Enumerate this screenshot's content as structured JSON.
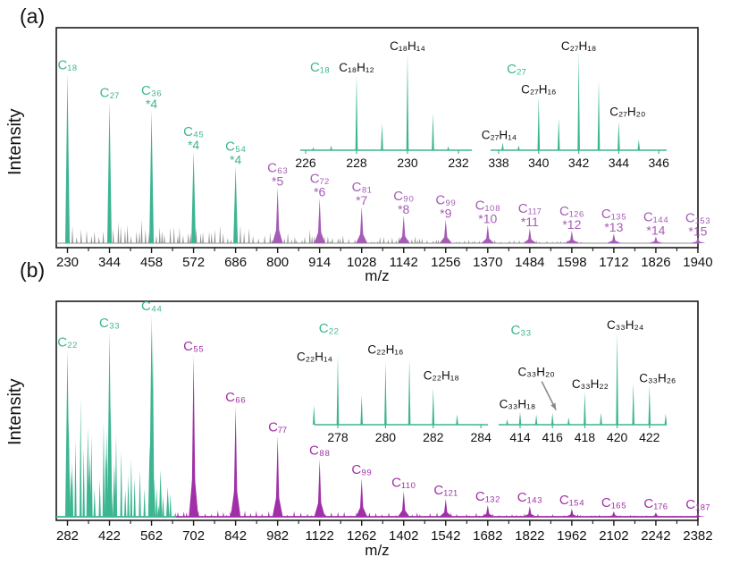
{
  "chart_data": [
    {
      "type": "line",
      "panel": "(a)",
      "xlabel": "m/z",
      "ylabel": "Intensity",
      "x_ticks": [
        230,
        344,
        458,
        572,
        686,
        800,
        914,
        1028,
        1142,
        1256,
        1370,
        1484,
        1598,
        1712,
        1826,
        1940
      ],
      "xlim": [
        216,
        1955
      ],
      "grid": false,
      "legend": "none",
      "colors": {
        "green": "#3cb591",
        "purple": "#a55cb5",
        "noise": "#8f8f8f",
        "axis": "#1a1a1a",
        "text": "#111111"
      },
      "peaks": [
        {
          "mz": 230,
          "rel": 0.79,
          "color": "green",
          "label": "C18"
        },
        {
          "mz": 344,
          "rel": 0.66,
          "color": "green",
          "label": "C27"
        },
        {
          "mz": 458,
          "rel": 0.62,
          "color": "green",
          "label": "C36",
          "mult": "*4"
        },
        {
          "mz": 572,
          "rel": 0.43,
          "color": "green",
          "label": "C45",
          "mult": "*4"
        },
        {
          "mz": 686,
          "rel": 0.36,
          "color": "green",
          "label": "C54",
          "mult": "*4"
        },
        {
          "mz": 800,
          "rel": 0.26,
          "color": "purple",
          "label": "C63",
          "mult": "*5"
        },
        {
          "mz": 914,
          "rel": 0.21,
          "color": "purple",
          "label": "C72",
          "mult": "*6"
        },
        {
          "mz": 1028,
          "rel": 0.17,
          "color": "purple",
          "label": "C81",
          "mult": "*7"
        },
        {
          "mz": 1142,
          "rel": 0.13,
          "color": "purple",
          "label": "C90",
          "mult": "*8"
        },
        {
          "mz": 1256,
          "rel": 0.11,
          "color": "purple",
          "label": "C99",
          "mult": "*9"
        },
        {
          "mz": 1370,
          "rel": 0.085,
          "color": "purple",
          "label": "C108",
          "mult": "*10"
        },
        {
          "mz": 1484,
          "rel": 0.07,
          "color": "purple",
          "label": "C117",
          "mult": "*11"
        },
        {
          "mz": 1598,
          "rel": 0.058,
          "color": "purple",
          "label": "C126",
          "mult": "*12"
        },
        {
          "mz": 1712,
          "rel": 0.045,
          "color": "purple",
          "label": "C135",
          "mult": "*13"
        },
        {
          "mz": 1826,
          "rel": 0.032,
          "color": "purple",
          "label": "C144",
          "mult": "*14"
        },
        {
          "mz": 1940,
          "rel": 0.028,
          "color": "purple",
          "label": "C153",
          "mult": "*15"
        }
      ],
      "insets": [
        {
          "title": "C18",
          "x_ticks": [
            226,
            228,
            230,
            232
          ],
          "peaks": [
            {
              "mz": 226.3,
              "rel": 0.03
            },
            {
              "mz": 227.0,
              "rel": 0.05
            },
            {
              "mz": 228,
              "rel": 0.78,
              "label": "C18H12"
            },
            {
              "mz": 229,
              "rel": 0.28
            },
            {
              "mz": 230,
              "rel": 1.0,
              "label": "C18H14"
            },
            {
              "mz": 231,
              "rel": 0.38
            },
            {
              "mz": 231.6,
              "rel": 0.04
            }
          ]
        },
        {
          "title": "C27",
          "x_ticks": [
            338,
            340,
            342,
            344,
            346
          ],
          "peaks": [
            {
              "mz": 338.2,
              "rel": 0.08,
              "label": "C27H14",
              "label_dx": -4
            },
            {
              "mz": 339,
              "rel": 0.05
            },
            {
              "mz": 340,
              "rel": 0.55,
              "label": "C27H16"
            },
            {
              "mz": 341,
              "rel": 0.33
            },
            {
              "mz": 342,
              "rel": 1.0,
              "label": "C27H18"
            },
            {
              "mz": 343,
              "rel": 0.72
            },
            {
              "mz": 344,
              "rel": 0.3,
              "label": "C27H20",
              "label_dx": 10,
              "label_dy": -2
            },
            {
              "mz": 345,
              "rel": 0.11
            }
          ]
        }
      ]
    },
    {
      "type": "line",
      "panel": "(b)",
      "xlabel": "m/z",
      "ylabel": "Intensity",
      "x_ticks": [
        282,
        422,
        562,
        702,
        842,
        982,
        1122,
        1262,
        1402,
        1542,
        1682,
        1822,
        1962,
        2102,
        2242,
        2382
      ],
      "xlim": [
        245,
        2400
      ],
      "grid": false,
      "legend": "none",
      "colors": {
        "green": "#3cb591",
        "purple": "#a12fa8",
        "noise": "#8f8f8f",
        "axis": "#1a1a1a",
        "text": "#111111"
      },
      "peaks": [
        {
          "mz": 282,
          "rel": 0.78,
          "color": "green",
          "label": "C22"
        },
        {
          "mz": 422,
          "rel": 0.87,
          "color": "green",
          "label": "C33"
        },
        {
          "mz": 562,
          "rel": 0.95,
          "color": "green",
          "label": "C44"
        },
        {
          "mz": 702,
          "rel": 0.76,
          "color": "purple",
          "label": "C55"
        },
        {
          "mz": 842,
          "rel": 0.52,
          "color": "purple",
          "label": "C66"
        },
        {
          "mz": 982,
          "rel": 0.38,
          "color": "purple",
          "label": "C77"
        },
        {
          "mz": 1122,
          "rel": 0.27,
          "color": "purple",
          "label": "C88"
        },
        {
          "mz": 1262,
          "rel": 0.18,
          "color": "purple",
          "label": "C99"
        },
        {
          "mz": 1402,
          "rel": 0.12,
          "color": "purple",
          "label": "C110"
        },
        {
          "mz": 1542,
          "rel": 0.085,
          "color": "purple",
          "label": "C121"
        },
        {
          "mz": 1682,
          "rel": 0.055,
          "color": "purple",
          "label": "C132"
        },
        {
          "mz": 1822,
          "rel": 0.05,
          "color": "purple",
          "label": "C143"
        },
        {
          "mz": 1962,
          "rel": 0.038,
          "color": "purple",
          "label": "C154"
        },
        {
          "mz": 2102,
          "rel": 0.025,
          "color": "purple",
          "label": "C165"
        },
        {
          "mz": 2242,
          "rel": 0.02,
          "color": "purple",
          "label": "C176"
        },
        {
          "mz": 2382,
          "rel": 0.016,
          "color": "purple",
          "label": "C187"
        }
      ],
      "secondary_peaks": [
        {
          "mz": 286,
          "rel": 0.45
        },
        {
          "mz": 294,
          "rel": 0.22
        },
        {
          "mz": 350,
          "rel": 0.42
        },
        {
          "mz": 356,
          "rel": 0.3
        },
        {
          "mz": 412,
          "rel": 0.4
        },
        {
          "mz": 426,
          "rel": 0.52
        },
        {
          "mz": 438,
          "rel": 0.25
        },
        {
          "mz": 556,
          "rel": 0.35
        },
        {
          "mz": 566,
          "rel": 0.88
        },
        {
          "mz": 592,
          "rel": 0.22
        },
        {
          "mz": 616,
          "rel": 0.14
        }
      ],
      "insets": [
        {
          "title": "C22",
          "x_ticks": [
            278,
            280,
            282,
            284
          ],
          "peaks": [
            {
              "mz": 277,
              "rel": 0.25
            },
            {
              "mz": 278,
              "rel": 0.88,
              "label": "C22H14",
              "label_dx": -26,
              "label_dy": 10
            },
            {
              "mz": 279,
              "rel": 0.38
            },
            {
              "mz": 280,
              "rel": 0.8,
              "label": "C22H16",
              "label_dy": -5
            },
            {
              "mz": 281,
              "rel": 0.83
            },
            {
              "mz": 282,
              "rel": 0.47,
              "label": "C22H18",
              "label_dx": 9,
              "label_dy": -5
            },
            {
              "mz": 283,
              "rel": 0.13
            }
          ]
        },
        {
          "title": "C33",
          "x_ticks": [
            414,
            416,
            418,
            420,
            422
          ],
          "peaks": [
            {
              "mz": 413.2,
              "rel": 0.06
            },
            {
              "mz": 414,
              "rel": 0.14,
              "label": "C33H18",
              "label_dx": -3
            },
            {
              "mz": 415,
              "rel": 0.11
            },
            {
              "mz": 416,
              "rel": 0.13,
              "label": "C33H20",
              "label_dx": -18,
              "label_dy": -37,
              "arrow": true
            },
            {
              "mz": 417,
              "rel": 0.08
            },
            {
              "mz": 418,
              "rel": 0.36,
              "label": "C33H22",
              "label_dx": 6
            },
            {
              "mz": 419,
              "rel": 0.13
            },
            {
              "mz": 420,
              "rel": 1.0,
              "label": "C33H24",
              "label_dx": 9
            },
            {
              "mz": 421,
              "rel": 0.45
            },
            {
              "mz": 422,
              "rel": 0.42,
              "label": "C33H26",
              "label_dx": 9
            },
            {
              "mz": 423,
              "rel": 0.12
            }
          ]
        }
      ]
    }
  ]
}
